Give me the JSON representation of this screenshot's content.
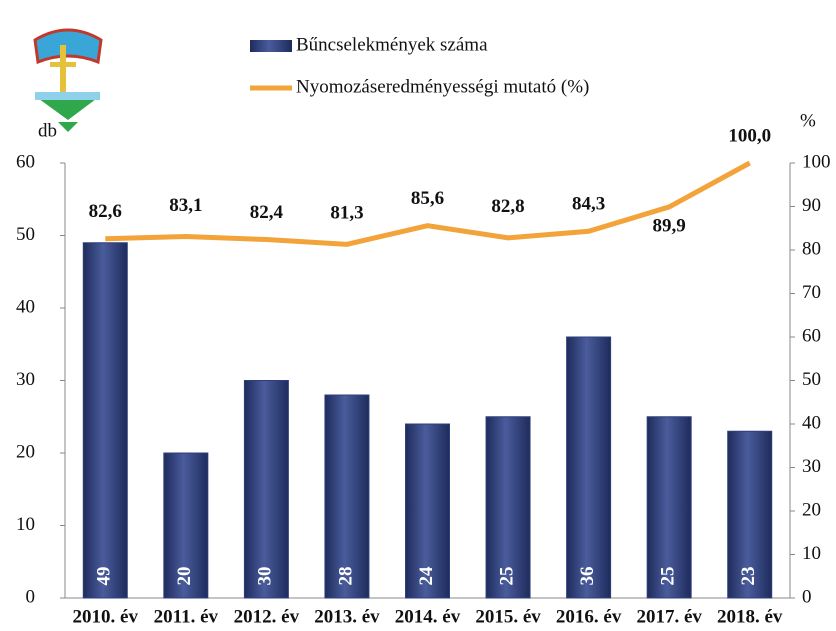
{
  "chart_data": {
    "type": "bar",
    "categories": [
      "2010. év",
      "2011. év",
      "2012. év",
      "2013. év",
      "2014. év",
      "2015. év",
      "2016. év",
      "2017. év",
      "2018. év"
    ],
    "series": [
      {
        "name": "Bűncselekmények száma",
        "type": "bar",
        "color": "#2f3f7c",
        "values": [
          49,
          20,
          30,
          28,
          24,
          25,
          36,
          25,
          23
        ]
      },
      {
        "name": "Nyomozáseredményességi mutató (%)",
        "type": "line",
        "axis": "y2",
        "color": "#f2a33a",
        "values": [
          82.6,
          83.1,
          82.4,
          81.3,
          85.6,
          82.8,
          84.3,
          89.9,
          100.0
        ],
        "value_labels": [
          "82,6",
          "83,1",
          "82,4",
          "81,3",
          "85,6",
          "82,8",
          "84,3",
          "89,9",
          "100,0"
        ]
      }
    ],
    "ylabel": "db",
    "y2label": "%",
    "ylim": [
      0,
      60
    ],
    "yticks": [
      0,
      10,
      20,
      30,
      40,
      50,
      60
    ],
    "y2lim": [
      0,
      100
    ],
    "y2ticks": [
      0,
      10,
      20,
      30,
      40,
      50,
      60,
      70,
      80,
      90,
      100
    ]
  }
}
